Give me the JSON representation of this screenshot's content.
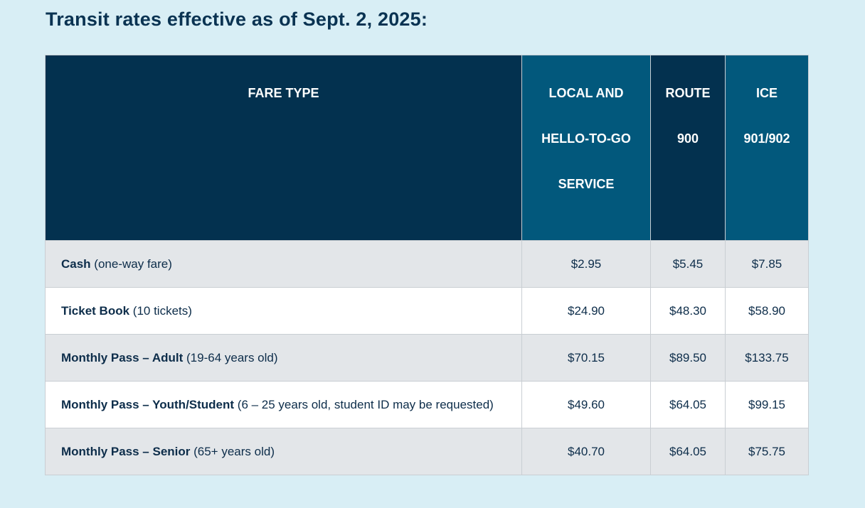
{
  "title": "Transit rates effective as of Sept. 2, 2025:",
  "table": {
    "headers": [
      {
        "lines": [
          "FARE TYPE"
        ]
      },
      {
        "lines": [
          "LOCAL AND",
          "HELLO-TO-GO",
          "SERVICE"
        ]
      },
      {
        "lines": [
          "ROUTE",
          "900"
        ]
      },
      {
        "lines": [
          "ICE",
          "901/902"
        ]
      }
    ],
    "rows": [
      {
        "name_bold": "Cash",
        "name_detail": " (one-way fare)",
        "local": "$2.95",
        "route900": "$5.45",
        "ice": "$7.85"
      },
      {
        "name_bold": "Ticket Book",
        "name_detail": " (10 tickets)",
        "local": "$24.90",
        "route900": "$48.30",
        "ice": "$58.90"
      },
      {
        "name_bold": "Monthly Pass – Adult",
        "name_detail": " (19-64 years old)",
        "local": "$70.15",
        "route900": "$89.50",
        "ice": "$133.75"
      },
      {
        "name_bold": "Monthly Pass – Youth/Student",
        "name_detail": " (6 – 25 years old, student ID may be requested)",
        "local": "$49.60",
        "route900": "$64.05",
        "ice": "$99.15"
      },
      {
        "name_bold": "Monthly Pass – Senior",
        "name_detail": " (65+ years old)",
        "local": "$40.70",
        "route900": "$64.05",
        "ice": "$75.75"
      }
    ]
  },
  "colors": {
    "background": "#d8eef5",
    "header_dark": "#03314f",
    "header_teal": "#02587c",
    "row_grey": "#e3e6e9",
    "row_white": "#ffffff",
    "text": "#0d2d4a"
  }
}
